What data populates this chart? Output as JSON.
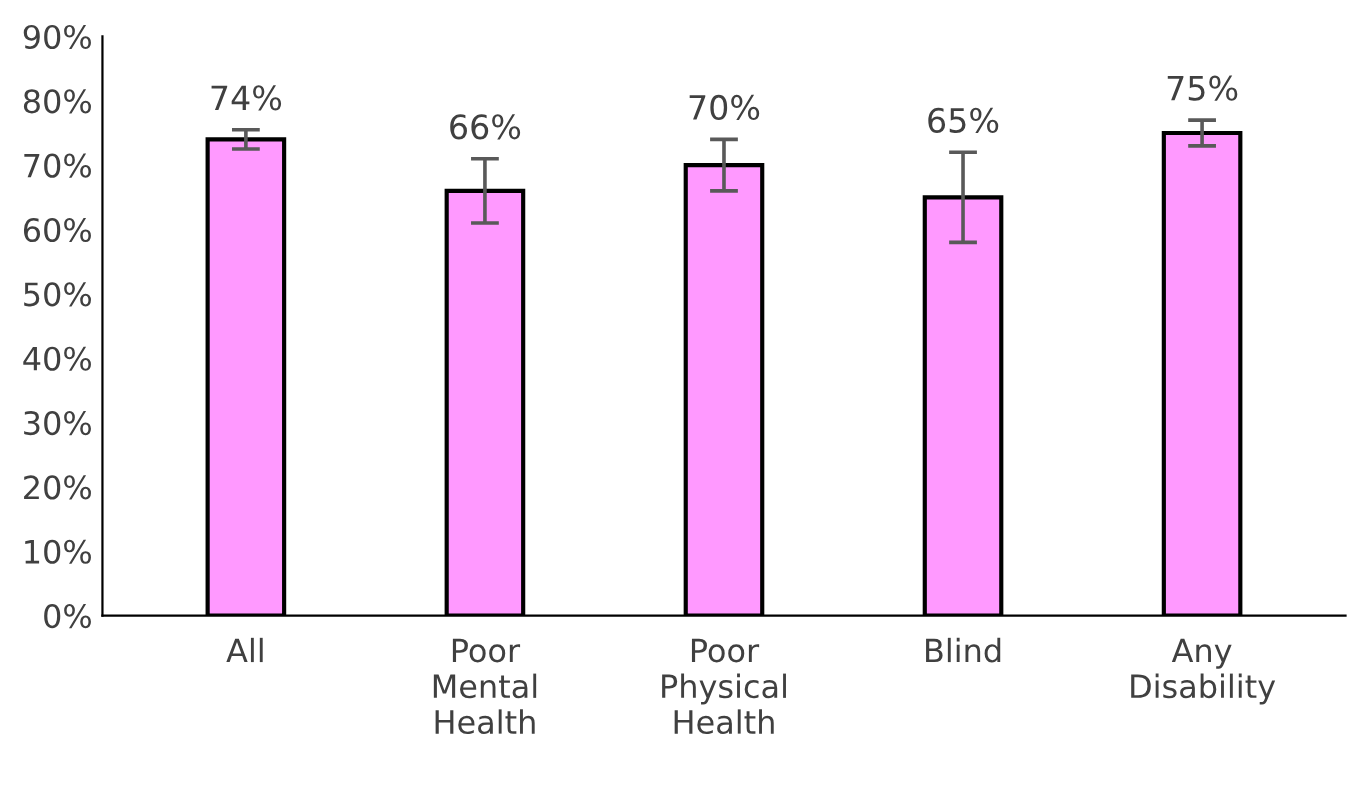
{
  "chart_data": {
    "type": "bar",
    "categories": [
      "All",
      "Poor\nMental\nHealth",
      "Poor\nPhysical\nHealth",
      "Blind",
      "Any\nDisability"
    ],
    "values": [
      74,
      66,
      70,
      65,
      75
    ],
    "errors": [
      1.5,
      5,
      4,
      7,
      2
    ],
    "value_labels": [
      "74%",
      "66%",
      "70%",
      "65%",
      "75%"
    ],
    "color": "#ff99ff",
    "ylim": [
      0,
      90
    ],
    "yticks": [
      {
        "value": 0,
        "label": "0%"
      },
      {
        "value": 10,
        "label": "10%"
      },
      {
        "value": 20,
        "label": "20%"
      },
      {
        "value": 30,
        "label": "30%"
      },
      {
        "value": 40,
        "label": "40%"
      },
      {
        "value": 50,
        "label": "50%"
      },
      {
        "value": 60,
        "label": "60%"
      },
      {
        "value": 70,
        "label": "70%"
      },
      {
        "value": 80,
        "label": "80%"
      },
      {
        "value": 90,
        "label": "90%"
      }
    ],
    "grid": false,
    "legend": false
  }
}
